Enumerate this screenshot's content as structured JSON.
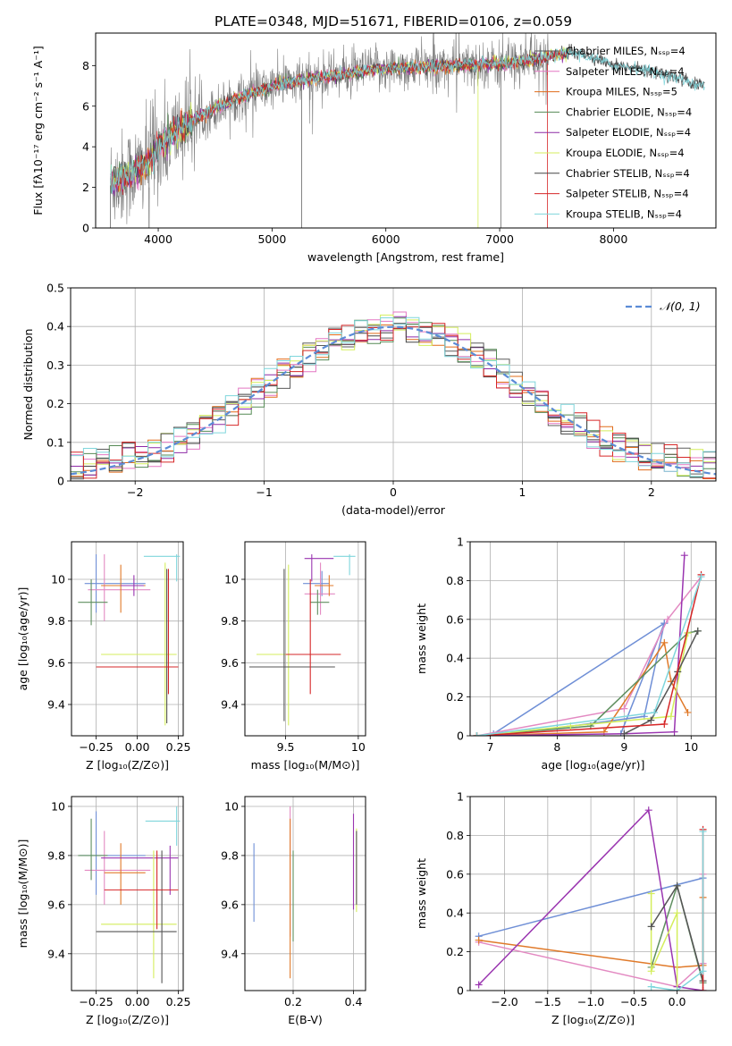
{
  "figure_title": "PLATE=0348, MJD=51671, FIBERID=0106, z=0.059",
  "series_colors": [
    "#5b5b5b",
    "#e377c2",
    "#e06c1a",
    "#558a55",
    "#8e2ba6",
    "#d4ee5c",
    "#444444",
    "#d62728",
    "#7fd6dc"
  ],
  "line_colors": [
    "#6f8fd6",
    "#e38ac2",
    "#e07a2a",
    "#5f8f5f",
    "#9a35b0",
    "#d4ee5c",
    "#555555",
    "#d62728",
    "#7fd6dc"
  ],
  "chart_data": [
    {
      "id": "spectrum",
      "type": "line",
      "xlabel": "wavelength [Angstrom, rest frame]",
      "ylabel": "Flux [fλ10⁻¹⁷ erg cm⁻² s⁻¹ A⁻¹]",
      "xlim": [
        3450,
        8900
      ],
      "ylim": [
        0,
        9.6
      ],
      "xticks": [
        4000,
        5000,
        6000,
        7000,
        8000
      ],
      "yticks": [
        0,
        2,
        4,
        6,
        8
      ],
      "grid": false,
      "legend_position": "upper-right",
      "legend": [
        "Chabrier MILES, Nₛₛₚ=4",
        "Salpeter MILES, Nₛₛₚ=4",
        "Kroupa MILES, Nₛₛₚ=5",
        "Chabrier ELODIE, Nₛₛₚ=4",
        "Salpeter ELODIE, Nₛₛₚ=4",
        "Kroupa ELODIE, Nₛₛₚ=4",
        "Chabrier STELIB, Nₛₛₚ=4",
        "Salpeter STELIB, Nₛₛₚ=4",
        "Kroupa STELIB, Nₛₛₚ=4"
      ],
      "model_trend": {
        "x": [
          3600,
          3700,
          3800,
          3900,
          4000,
          4100,
          4200,
          4300,
          4500,
          4700,
          4900,
          5100,
          5300,
          5500,
          5700,
          5900,
          6100,
          6300,
          6500,
          6700,
          6900,
          7100,
          7300,
          7500,
          7600
        ],
        "y": [
          2.3,
          2.5,
          2.8,
          3.2,
          4.0,
          4.5,
          4.9,
          5.3,
          5.9,
          6.4,
          6.8,
          7.1,
          7.3,
          7.5,
          7.6,
          7.8,
          7.9,
          7.9,
          8.0,
          8.0,
          8.1,
          8.1,
          8.3,
          8.5,
          8.6
        ]
      },
      "extended_models": {
        "x": [
          7600,
          7800,
          8000,
          8200,
          8400,
          8600,
          8800
        ],
        "y": [
          8.7,
          8.4,
          8.0,
          7.9,
          7.6,
          7.3,
          7.0
        ]
      }
    },
    {
      "id": "residuals",
      "type": "histogram",
      "xlabel": "(data-model)/error",
      "ylabel": "Normed distribution",
      "xlim": [
        -2.5,
        2.5
      ],
      "ylim": [
        0,
        0.5
      ],
      "xticks": [
        -2,
        -1,
        0,
        1,
        2
      ],
      "yticks": [
        0.0,
        0.1,
        0.2,
        0.3,
        0.4,
        0.5
      ],
      "grid": true,
      "legend_position": "upper-right",
      "legend": [
        "𝒩(0, 1)"
      ],
      "bin_edges_range": [
        -2.5,
        2.5
      ],
      "bin_width": 0.1,
      "reference_curve": "normal(0,1)"
    },
    {
      "id": "age-vs-Z",
      "type": "scatter",
      "xlabel": "Z [log₁₀(Z/Z⊙)]",
      "ylabel": "age  [log₁₀(age/yr)]",
      "xlim": [
        -0.4,
        0.28
      ],
      "ylim": [
        9.25,
        10.18
      ],
      "xticks": [
        -0.25,
        0.0,
        0.25
      ],
      "xticklabels": [
        "−0.25",
        "0.00",
        "0.25"
      ],
      "yticks": [
        9.4,
        9.6,
        9.8,
        10.0
      ],
      "grid": true,
      "points": [
        {
          "x": -0.25,
          "y": 9.98,
          "xe": [
            -0.32,
            0.05
          ],
          "ye": [
            9.84,
            10.12
          ]
        },
        {
          "x": -0.2,
          "y": 9.95,
          "xe": [
            -0.3,
            0.08
          ],
          "ye": [
            9.8,
            10.12
          ]
        },
        {
          "x": -0.1,
          "y": 9.97,
          "xe": [
            -0.22,
            0.05
          ],
          "ye": [
            9.84,
            10.07
          ]
        },
        {
          "x": -0.28,
          "y": 9.89,
          "xe": [
            -0.36,
            -0.18
          ],
          "ye": [
            9.78,
            10.0
          ]
        },
        {
          "x": -0.02,
          "y": 9.97,
          "xe": [
            -0.1,
            0.04
          ],
          "ye": [
            9.92,
            10.02
          ]
        },
        {
          "x": 0.17,
          "y": 9.64,
          "xe": [
            -0.22,
            0.24
          ],
          "ye": [
            9.3,
            10.08
          ]
        },
        {
          "x": 0.18,
          "y": 9.58,
          "xe": [
            -0.22,
            0.24
          ],
          "ye": [
            9.31,
            10.05
          ]
        },
        {
          "x": 0.19,
          "y": 9.58,
          "xe": [
            -0.25,
            0.25
          ],
          "ye": [
            9.45,
            10.05
          ]
        },
        {
          "x": 0.24,
          "y": 10.11,
          "xe": [
            0.04,
            0.26
          ],
          "ye": [
            9.99,
            10.12
          ]
        }
      ]
    },
    {
      "id": "age-vs-mass",
      "type": "scatter",
      "xlabel": "mass [log₁₀(M/M⊙)]",
      "ylabel": "",
      "xlim": [
        9.22,
        10.05
      ],
      "ylim": [
        9.25,
        10.18
      ],
      "xticks": [
        9.5,
        10.0
      ],
      "yticks": [
        9.4,
        9.6,
        9.8,
        10.0
      ],
      "grid": true,
      "points": [
        {
          "x": 9.75,
          "y": 9.98,
          "xe": [
            9.62,
            9.8
          ],
          "ye": [
            9.92,
            10.04
          ]
        },
        {
          "x": 9.74,
          "y": 9.93,
          "xe": [
            9.63,
            9.84
          ],
          "ye": [
            9.83,
            10.08
          ]
        },
        {
          "x": 9.8,
          "y": 9.97,
          "xe": [
            9.7,
            9.83
          ],
          "ye": [
            9.92,
            10.02
          ]
        },
        {
          "x": 9.72,
          "y": 9.89,
          "xe": [
            9.67,
            9.8
          ],
          "ye": [
            9.83,
            9.95
          ]
        },
        {
          "x": 9.68,
          "y": 10.1,
          "xe": [
            9.63,
            9.83
          ],
          "ye": [
            9.99,
            10.12
          ]
        },
        {
          "x": 9.52,
          "y": 9.64,
          "xe": [
            9.3,
            9.8
          ],
          "ye": [
            9.3,
            10.07
          ]
        },
        {
          "x": 9.49,
          "y": 9.58,
          "xe": [
            9.25,
            9.84
          ],
          "ye": [
            9.32,
            10.05
          ]
        },
        {
          "x": 9.67,
          "y": 9.64,
          "xe": [
            9.5,
            9.88
          ],
          "ye": [
            9.45,
            10.0
          ]
        },
        {
          "x": 9.94,
          "y": 10.11,
          "xe": [
            9.83,
            9.98
          ],
          "ye": [
            10.02,
            10.12
          ]
        }
      ]
    },
    {
      "id": "weight-vs-age",
      "type": "line",
      "xlabel": "age  [log₁₀(age/yr)]",
      "ylabel": "mass weight",
      "xlim": [
        6.7,
        10.37
      ],
      "ylim": [
        0,
        1.0
      ],
      "xticks": [
        7,
        8,
        9,
        10
      ],
      "yticks": [
        0.0,
        0.2,
        0.4,
        0.6,
        0.8,
        1.0
      ],
      "grid": true,
      "series": [
        {
          "x": [
            8.95,
            9.6,
            9.3,
            8.0,
            7.05,
            9.6
          ],
          "y": [
            0.01,
            0.58,
            0.1,
            0.04,
            0.01,
            0.58
          ]
        },
        {
          "x": [
            6.8,
            9.0,
            9.65,
            10.15
          ],
          "y": [
            0.0,
            0.14,
            0.6,
            0.82
          ]
        },
        {
          "x": [
            6.8,
            8.7,
            9.6,
            9.7,
            9.95
          ],
          "y": [
            0.0,
            0.02,
            0.48,
            0.28,
            0.12
          ]
        },
        {
          "x": [
            6.8,
            8.5,
            9.95,
            10.1
          ],
          "y": [
            0.0,
            0.05,
            0.53,
            0.54
          ]
        },
        {
          "x": [
            6.8,
            9.0,
            9.75,
            9.9
          ],
          "y": [
            0.0,
            0.01,
            0.02,
            0.93
          ]
        },
        {
          "x": [
            6.8,
            8.2,
            9.7,
            9.95
          ],
          "y": [
            0.0,
            0.05,
            0.1,
            0.53
          ]
        },
        {
          "x": [
            9.0,
            9.4,
            9.8,
            10.1
          ],
          "y": [
            0.01,
            0.08,
            0.33,
            0.54
          ]
        },
        {
          "x": [
            6.8,
            9.6,
            10.15
          ],
          "y": [
            0.0,
            0.06,
            0.83
          ]
        },
        {
          "x": [
            6.8,
            9.45,
            10.15
          ],
          "y": [
            0.0,
            0.12,
            0.82
          ]
        }
      ]
    },
    {
      "id": "mass-vs-Z",
      "type": "scatter",
      "xlabel": "Z [log₁₀(Z/Z⊙)]",
      "ylabel": "mass [log₁₀(M/M⊙)]",
      "xlim": [
        -0.4,
        0.28
      ],
      "ylim": [
        9.25,
        10.04
      ],
      "xticks": [
        -0.25,
        0.0,
        0.25
      ],
      "xticklabels": [
        "−0.25",
        "0.00",
        "0.25"
      ],
      "yticks": [
        9.4,
        9.6,
        9.8,
        10.0
      ],
      "grid": true,
      "points": [
        {
          "x": -0.25,
          "y": 9.8,
          "xe": [
            -0.35,
            0.05
          ],
          "ye": [
            9.64,
            9.98
          ]
        },
        {
          "x": -0.2,
          "y": 9.74,
          "xe": [
            -0.32,
            0.08
          ],
          "ye": [
            9.6,
            9.9
          ]
        },
        {
          "x": -0.1,
          "y": 9.73,
          "xe": [
            -0.2,
            0.05
          ],
          "ye": [
            9.6,
            9.85
          ]
        },
        {
          "x": -0.28,
          "y": 9.8,
          "xe": [
            -0.36,
            -0.18
          ],
          "ye": [
            9.7,
            9.95
          ]
        },
        {
          "x": 0.2,
          "y": 9.79,
          "xe": [
            -0.22,
            0.25
          ],
          "ye": [
            9.64,
            9.84
          ]
        },
        {
          "x": 0.1,
          "y": 9.52,
          "xe": [
            -0.22,
            0.24
          ],
          "ye": [
            9.3,
            9.82
          ]
        },
        {
          "x": 0.15,
          "y": 9.49,
          "xe": [
            -0.25,
            0.24
          ],
          "ye": [
            9.28,
            9.82
          ]
        },
        {
          "x": 0.12,
          "y": 9.66,
          "xe": [
            -0.2,
            0.25
          ],
          "ye": [
            9.5,
            9.82
          ]
        },
        {
          "x": 0.24,
          "y": 9.94,
          "xe": [
            0.05,
            0.26
          ],
          "ye": [
            9.84,
            10.0
          ]
        }
      ]
    },
    {
      "id": "mass-vs-EBV",
      "type": "scatter",
      "xlabel": "E(B-V)",
      "ylabel": "",
      "xlim": [
        0.04,
        0.44
      ],
      "ylim": [
        9.25,
        10.04
      ],
      "xticks": [
        0.2,
        0.4
      ],
      "yticks": [
        9.4,
        9.6,
        9.8,
        10.0
      ],
      "grid": true,
      "points": [
        {
          "x": 0.07,
          "y": 9.7,
          "xe": [
            0.07,
            0.07
          ],
          "ye": [
            9.53,
            9.85
          ]
        },
        {
          "x": 0.19,
          "y": 9.76,
          "xe": [
            0.19,
            0.19
          ],
          "ye": [
            9.47,
            10.0
          ]
        },
        {
          "x": 0.19,
          "y": 9.75,
          "xe": [
            0.19,
            0.19
          ],
          "ye": [
            9.3,
            9.95
          ]
        },
        {
          "x": 0.2,
          "y": 9.68,
          "xe": [
            0.2,
            0.2
          ],
          "ye": [
            9.45,
            9.82
          ]
        },
        {
          "x": 0.4,
          "y": 9.8,
          "xe": [
            0.4,
            0.4
          ],
          "ye": [
            9.58,
            9.97
          ]
        },
        {
          "x": 0.41,
          "y": 9.74,
          "xe": [
            0.41,
            0.41
          ],
          "ye": [
            9.57,
            9.91
          ]
        },
        {
          "x": 0.41,
          "y": 9.78,
          "xe": [
            0.41,
            0.41
          ],
          "ye": [
            9.6,
            9.9
          ]
        }
      ]
    },
    {
      "id": "weight-vs-Z",
      "type": "line",
      "xlabel": "Z [log₁₀(Z/Z⊙)]",
      "ylabel": "mass weight",
      "xlim": [
        -2.4,
        0.45
      ],
      "ylim": [
        0,
        1.0
      ],
      "xticks": [
        -2.0,
        -1.5,
        -1.0,
        -0.5,
        0.0
      ],
      "xticklabels": [
        "−2.0",
        "−1.5",
        "−1.0",
        "−0.5",
        "0.0"
      ],
      "yticks": [
        0.0,
        0.2,
        0.4,
        0.6,
        0.8,
        1.0
      ],
      "grid": true,
      "series": [
        {
          "x": [
            -2.3,
            0.3
          ],
          "y": [
            0.28,
            0.58
          ]
        },
        {
          "x": [
            -2.3,
            0.0,
            0.3,
            0.3
          ],
          "y": [
            0.25,
            0.02,
            0.14,
            0.6
          ]
        },
        {
          "x": [
            -2.3,
            0.0,
            0.3,
            0.3
          ],
          "y": [
            0.26,
            0.12,
            0.13,
            0.48
          ]
        },
        {
          "x": [
            -0.3,
            0.0,
            0.3
          ],
          "y": [
            0.12,
            0.54,
            0.04
          ]
        },
        {
          "x": [
            -2.3,
            -0.33,
            0.0,
            0.3
          ],
          "y": [
            0.03,
            0.93,
            0.02,
            0.0
          ]
        },
        {
          "x": [
            -0.3,
            -0.3,
            0.0,
            0.0
          ],
          "y": [
            0.5,
            0.1,
            0.4,
            0.0
          ]
        },
        {
          "x": [
            -0.3,
            0.0,
            0.3
          ],
          "y": [
            0.33,
            0.54,
            0.05
          ]
        },
        {
          "x": [
            0.3,
            0.3
          ],
          "y": [
            0.0,
            0.83
          ]
        },
        {
          "x": [
            -0.3,
            0.0,
            0.3,
            0.3
          ],
          "y": [
            0.02,
            0.0,
            0.1,
            0.82
          ]
        }
      ]
    }
  ]
}
